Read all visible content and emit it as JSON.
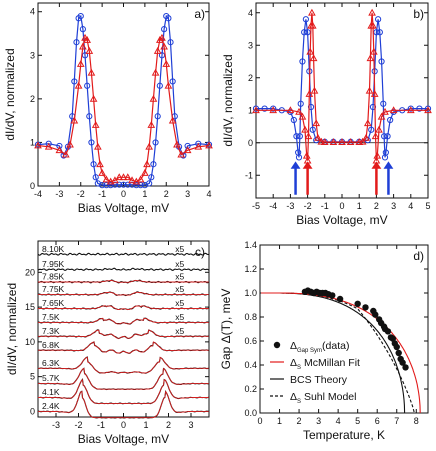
{
  "chart_data": [
    {
      "type": "line",
      "panel_label": "a)",
      "xlabel": "Bias Voltage, mV",
      "ylabel": "dI/dV, normalized",
      "xlim": [
        -4,
        4
      ],
      "ylim": [
        0,
        4.2
      ],
      "xticks": [
        -4,
        -3,
        -2,
        -1,
        0,
        1,
        2,
        3,
        4
      ],
      "yticks": [
        0,
        1,
        2,
        3,
        4
      ],
      "series": [
        {
          "marker": "circle",
          "color": "#1f3fd6",
          "x": [
            -4,
            -3.5,
            -3,
            -2.8,
            -2.6,
            -2.4,
            -2.3,
            -2.2,
            -2.1,
            -2.0,
            -1.9,
            -1.8,
            -1.7,
            -1.6,
            -1.5,
            -1.4,
            -1.3,
            -1.2,
            -1.0,
            -0.8,
            -0.6,
            -0.4,
            -0.2,
            0,
            0.2,
            0.4,
            0.6,
            0.8,
            1.0,
            1.2,
            1.3,
            1.4,
            1.5,
            1.6,
            1.7,
            1.8,
            1.9,
            2.0,
            2.1,
            2.2,
            2.3,
            2.4,
            2.6,
            2.8,
            3,
            3.5,
            4
          ],
          "y": [
            0.95,
            0.97,
            0.92,
            0.7,
            0.9,
            1.6,
            2.4,
            3.3,
            3.85,
            3.9,
            3.6,
            3.0,
            2.3,
            1.6,
            1.0,
            0.5,
            0.2,
            0.06,
            0.02,
            0.02,
            0.02,
            0.03,
            0.03,
            0.03,
            0.03,
            0.03,
            0.02,
            0.02,
            0.02,
            0.06,
            0.2,
            0.5,
            1.0,
            1.6,
            2.3,
            3.0,
            3.6,
            3.9,
            3.85,
            3.3,
            2.4,
            1.6,
            0.9,
            0.7,
            0.92,
            0.97,
            0.95
          ]
        },
        {
          "marker": "triangle",
          "color": "#e21b1b",
          "x": [
            -4,
            -3.5,
            -3,
            -2.7,
            -2.5,
            -2.3,
            -2.1,
            -2.0,
            -1.9,
            -1.8,
            -1.7,
            -1.6,
            -1.5,
            -1.4,
            -1.3,
            -1.2,
            -1.1,
            -1.0,
            -0.8,
            -0.6,
            -0.4,
            -0.2,
            0,
            0.2,
            0.4,
            0.6,
            0.8,
            1.0,
            1.1,
            1.2,
            1.3,
            1.4,
            1.5,
            1.6,
            1.7,
            1.8,
            1.9,
            2.0,
            2.1,
            2.3,
            2.5,
            2.7,
            3,
            3.5,
            4
          ],
          "y": [
            0.93,
            0.9,
            0.82,
            0.72,
            0.95,
            1.5,
            2.3,
            2.8,
            3.2,
            3.4,
            3.35,
            3.1,
            2.6,
            2.0,
            1.4,
            0.9,
            0.5,
            0.3,
            0.15,
            0.1,
            0.13,
            0.2,
            0.2,
            0.2,
            0.13,
            0.1,
            0.15,
            0.3,
            0.5,
            0.9,
            1.4,
            2.0,
            2.6,
            3.1,
            3.35,
            3.4,
            3.2,
            2.8,
            2.3,
            1.5,
            0.95,
            0.72,
            0.82,
            0.9,
            0.93
          ]
        }
      ]
    },
    {
      "type": "line",
      "panel_label": "b)",
      "xlabel": "Bias Voltage, mV",
      "ylabel": "dI/dV, normalized",
      "xlim": [
        -5,
        5
      ],
      "ylim": [
        -1.7,
        4.3
      ],
      "xticks": [
        -5,
        -4,
        -3,
        -2,
        -1,
        0,
        1,
        2,
        3,
        4,
        5
      ],
      "yticks": [
        -1,
        0,
        1,
        2,
        3,
        4
      ],
      "arrows_x_mV": [
        -2.7,
        -2.0,
        2.0,
        2.7
      ],
      "arrow_colors": [
        "#1f3fd6",
        "#e21b1b",
        "#e21b1b",
        "#1f3fd6"
      ],
      "series": [
        {
          "marker": "circle",
          "color": "#1f3fd6",
          "x": [
            -5,
            -4.5,
            -4,
            -3.5,
            -3,
            -2.8,
            -2.65,
            -2.55,
            -2.5,
            -2.45,
            -2.4,
            -2.3,
            -2.2,
            -2.1,
            -2.0,
            -1.9,
            -1.8,
            -1.7,
            -1.5,
            -1.0,
            -0.5,
            0,
            0.5,
            1.0,
            1.5,
            1.7,
            1.8,
            1.9,
            2.0,
            2.1,
            2.2,
            2.3,
            2.4,
            2.45,
            2.5,
            2.55,
            2.65,
            2.8,
            3,
            3.5,
            4,
            4.5,
            5
          ],
          "y": [
            1.05,
            1.05,
            1.05,
            1.0,
            0.95,
            0.7,
            0.2,
            -0.3,
            -0.45,
            0.2,
            1.2,
            2.5,
            3.4,
            3.8,
            3.4,
            2.2,
            1.1,
            0.4,
            0.08,
            0.03,
            0.03,
            0.03,
            0.03,
            0.03,
            0.08,
            0.4,
            1.1,
            2.2,
            3.4,
            3.8,
            3.4,
            2.5,
            1.2,
            0.2,
            -0.45,
            -0.3,
            0.2,
            0.7,
            0.95,
            1.0,
            1.05,
            1.05,
            1.05
          ]
        },
        {
          "marker": "triangle",
          "color": "#e21b1b",
          "x": [
            -5,
            -4,
            -3,
            -2.5,
            -2.3,
            -2.15,
            -2.05,
            -2.0,
            -1.95,
            -1.9,
            -1.85,
            -1.8,
            -1.75,
            -1.7,
            -1.65,
            -1.6,
            -1.5,
            -1.4,
            -1.2,
            -1.0,
            -0.5,
            0,
            0.5,
            1.0,
            1.2,
            1.4,
            1.5,
            1.6,
            1.65,
            1.7,
            1.75,
            1.8,
            1.85,
            1.9,
            1.95,
            2.0,
            2.05,
            2.15,
            2.3,
            2.5,
            3,
            4,
            5
          ],
          "y": [
            1.0,
            1.0,
            1.0,
            0.95,
            0.8,
            0.4,
            -0.4,
            -0.55,
            0.2,
            1.5,
            2.8,
            3.6,
            4.0,
            3.6,
            2.6,
            1.6,
            0.6,
            0.15,
            0.03,
            0.02,
            0.02,
            0.02,
            0.02,
            0.02,
            0.03,
            0.15,
            0.6,
            1.6,
            2.6,
            3.6,
            4.0,
            3.6,
            2.8,
            1.5,
            0.2,
            -0.55,
            -0.4,
            0.4,
            0.8,
            0.95,
            1.0,
            1.0,
            1.0
          ]
        }
      ]
    },
    {
      "type": "line",
      "panel_label": "c)",
      "xlabel": "Bias Voltage, mV",
      "ylabel": "dI/dV, normalized",
      "xlim": [
        -3.8,
        3.8
      ],
      "ylim": [
        -0.8,
        24.5
      ],
      "xticks": [
        -3,
        -2,
        -1,
        0,
        1,
        2,
        3
      ],
      "yticks": [
        0,
        5,
        10,
        15,
        20
      ],
      "curve_color": "#111111",
      "fit_color": "#d42020",
      "curves": [
        {
          "label": "2.4K",
          "offset": 0,
          "depth": 0.9,
          "peak": 2.9,
          "pw": 0.25,
          "rx": 1.85,
          "humps": 0,
          "wiggle": 0.05,
          "fit": true
        },
        {
          "label": "4.1K",
          "offset": 2,
          "depth": 0.85,
          "peak": 2.6,
          "pw": 0.28,
          "rx": 1.8,
          "humps": 0,
          "wiggle": 0.05,
          "fit": true
        },
        {
          "label": "5.7K",
          "offset": 4,
          "depth": 0.8,
          "peak": 2.2,
          "pw": 0.3,
          "rx": 1.75,
          "humps": 0,
          "wiggle": 0.05,
          "fit": true
        },
        {
          "label": "6.3K",
          "offset": 6.2,
          "depth": 0.7,
          "peak": 1.6,
          "pw": 0.32,
          "rx": 1.6,
          "humps": 0.2,
          "wiggle": 0.05,
          "fit": true
        },
        {
          "label": "6.8K",
          "offset": 8.8,
          "depth": 0.55,
          "peak": 1.2,
          "pw": 0.33,
          "rx": 1.3,
          "humps": 0.6,
          "wiggle": 0.06,
          "fit": true
        },
        {
          "label": "7.3K",
          "offset": 10.8,
          "depth": 0.45,
          "peak": 0.9,
          "pw": 0.33,
          "rx": 1.1,
          "humps": 0.7,
          "wiggle": 0.07,
          "fit": true,
          "scale": "x5"
        },
        {
          "label": "7.5K",
          "offset": 12.8,
          "depth": 0.35,
          "peak": 0.6,
          "pw": 0.33,
          "rx": 0.9,
          "humps": 0.5,
          "wiggle": 0.07,
          "fit": true,
          "scale": "x5"
        },
        {
          "label": "7.65K",
          "offset": 14.8,
          "depth": 0.25,
          "peak": 0.4,
          "pw": 0.33,
          "rx": 0.8,
          "humps": 0.35,
          "wiggle": 0.08,
          "fit": true,
          "scale": "x5"
        },
        {
          "label": "7.75K",
          "offset": 16.8,
          "depth": 0.18,
          "peak": 0.3,
          "pw": 0.33,
          "rx": 0.7,
          "humps": 0.25,
          "wiggle": 0.08,
          "fit": true,
          "scale": "x5"
        },
        {
          "label": "7.85K",
          "offset": 18.6,
          "depth": 0.12,
          "peak": 0.2,
          "pw": 0.33,
          "rx": 0.6,
          "humps": 0.15,
          "wiggle": 0.1,
          "fit": true,
          "scale": "x5"
        },
        {
          "label": "7.95K",
          "offset": 20.4,
          "depth": 0.06,
          "peak": 0.1,
          "pw": 0.33,
          "rx": 0.5,
          "humps": 0.05,
          "wiggle": 0.12,
          "fit": false,
          "scale": "x5"
        },
        {
          "label": "8.10K",
          "offset": 22.6,
          "depth": 0.0,
          "peak": 0.0,
          "pw": 0.33,
          "rx": 0.5,
          "humps": 0,
          "wiggle": 0.14,
          "fit": false,
          "scale": "x5"
        }
      ]
    },
    {
      "type": "scatter",
      "panel_label": "d)",
      "xlabel": "Temperature, K",
      "ylabel": "Gap Δ(T), meV",
      "xlim": [
        0,
        8.6
      ],
      "ylim": [
        0,
        1.4
      ],
      "xticks": [
        0,
        1,
        2,
        3,
        4,
        5,
        6,
        7,
        8
      ],
      "yticks": [
        0.0,
        0.2,
        0.4,
        0.6,
        0.8,
        1.0,
        1.2,
        1.4
      ],
      "legend_position": "bottom-left",
      "legend": [
        {
          "symbol": "dot",
          "label_main": "Δ",
          "label_sub": "Gap Sym",
          "label_rest": "(data)"
        },
        {
          "symbol": "red-line",
          "label_main": "Δ",
          "label_sub": "S",
          "label_rest": " McMillan Fit"
        },
        {
          "symbol": "black-line",
          "label_main": "",
          "label_sub": "",
          "label_rest": "BCS Theory"
        },
        {
          "symbol": "dashed-line",
          "label_main": "Δ",
          "label_sub": "S",
          "label_rest": " Suhl Model"
        }
      ],
      "data_points": {
        "x": [
          2.3,
          2.45,
          2.6,
          2.75,
          2.9,
          3.05,
          3.2,
          3.35,
          3.5,
          3.7,
          4.1,
          5.0,
          5.4,
          5.8,
          5.9,
          6.1,
          6.2,
          6.35,
          6.4,
          6.55,
          6.7,
          6.8,
          6.9,
          7.0,
          7.1,
          7.2,
          7.3,
          7.45
        ],
        "y": [
          1.01,
          1.02,
          1.01,
          1.0,
          1.01,
          1.0,
          1.0,
          1.0,
          0.99,
          0.98,
          0.95,
          0.91,
          0.88,
          0.85,
          0.82,
          0.78,
          0.75,
          0.72,
          0.7,
          0.68,
          0.63,
          0.62,
          0.58,
          0.55,
          0.5,
          0.45,
          0.42,
          0.38
        ]
      },
      "curves": {
        "mcmillan_tc": 8.2,
        "bcs_tc": 7.4,
        "suhl_tc": 7.9,
        "delta0": 1.0
      }
    }
  ]
}
